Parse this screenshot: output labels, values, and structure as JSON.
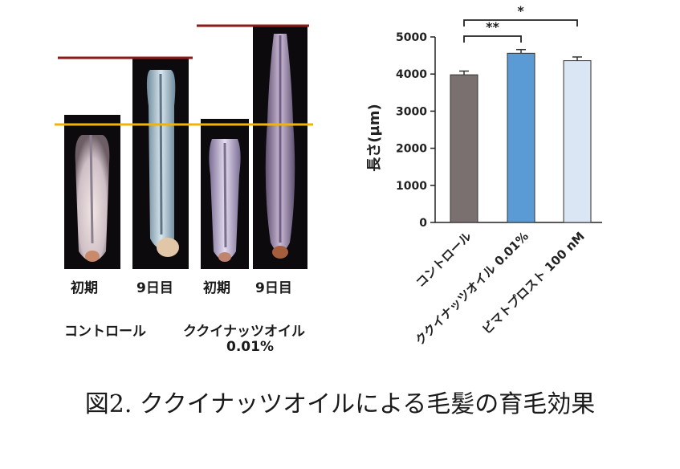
{
  "photos": {
    "labels": [
      "初期",
      "9日目",
      "初期",
      "9日目"
    ],
    "groups": [
      "コントロール",
      "ククイナッツオイル",
      "0.01%"
    ]
  },
  "colors": {
    "line_yellow": "#f2b400",
    "line_red": "#8b1a1a",
    "bar_gray": "#7a7070",
    "bar_blue": "#5b9bd5",
    "bar_lightblue": "#dbe6f5",
    "follicle_bg": "#0c0a0c"
  },
  "chart_data": {
    "type": "bar",
    "categories": [
      "コントロール",
      "ククイナッツオイル 0.01%",
      "ビマトプロスト 100 nM"
    ],
    "values": [
      3980,
      4560,
      4360
    ],
    "errors": [
      100,
      100,
      100
    ],
    "ylabel": "長さ(µm)",
    "ylim": [
      0,
      5000
    ],
    "yticks": [
      0,
      1000,
      2000,
      3000,
      4000,
      5000
    ],
    "significance": [
      {
        "from": 0,
        "to": 1,
        "label": "**"
      },
      {
        "from": 0,
        "to": 2,
        "label": "*"
      }
    ],
    "grid": false
  },
  "caption": "図2. ククイナッツオイルによる毛髪の育毛効果"
}
